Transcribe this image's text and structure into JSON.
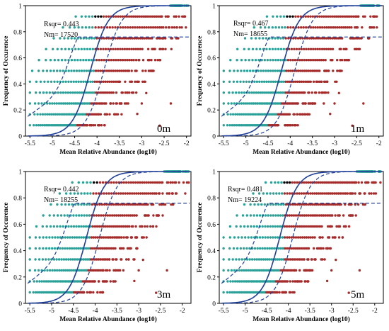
{
  "figure": {
    "panels": [
      {
        "id": "0m",
        "label": "0m",
        "rsqr_text": "Rsqr= 0.443",
        "nm_text": "Nm= 17520"
      },
      {
        "id": "1m",
        "label": "1m",
        "rsqr_text": "Rsqr= 0.467",
        "nm_text": "Nm= 18655"
      },
      {
        "id": "3m",
        "label": "3m",
        "rsqr_text": "Rsqr= 0.442",
        "nm_text": "Nm= 18255"
      },
      {
        "id": "5m",
        "label": "5m",
        "rsqr_text": "Rsqr= 0.481",
        "nm_text": "Nm= 19224"
      }
    ],
    "xlabel": "Mean Relative Abundance (log10)",
    "ylabel": "Frequency of Occurence",
    "colors": {
      "below": "#a52a2a",
      "within": "#000000",
      "above": "#2aa198",
      "fit": "#1f3f99"
    }
  },
  "chart_data": [
    {
      "type": "scatter",
      "panel": "0m",
      "xlim": [
        -5.6,
        -1.9
      ],
      "ylim": [
        0,
        1
      ],
      "xticks": [
        -5.5,
        -5,
        -4.5,
        -4,
        -3.5,
        -3,
        -2.5,
        -2
      ],
      "xtick_labels": [
        "-5.5",
        "-5",
        "-4.5",
        "-4",
        "-3.5",
        "-3",
        "-2.5",
        "-2"
      ],
      "yticks": [
        0,
        0.2,
        0.4,
        0.6,
        0.8,
        1
      ],
      "ytick_labels": [
        "0",
        "0.2",
        "0.4",
        "0.6",
        "0.8",
        "1"
      ],
      "rsqr": 0.443,
      "nm": 17520,
      "fit": {
        "type": "neutral-sigmoid",
        "midpoint_x": -4.15,
        "ci_upper_plateau": 0.76
      },
      "xlabel": "Mean Relative Abundance (log10)",
      "ylabel": "Frequency of Occurence"
    },
    {
      "type": "scatter",
      "panel": "1m",
      "xlim": [
        -5.6,
        -1.9
      ],
      "ylim": [
        0,
        1
      ],
      "xticks": [
        -5.5,
        -5,
        -4.5,
        -4,
        -3.5,
        -3,
        -2.5,
        -2
      ],
      "xtick_labels": [
        "-5.5",
        "-5",
        "-4.5",
        "-4",
        "-3.5",
        "-3",
        "-2.5",
        "-2"
      ],
      "yticks": [
        0,
        0.2,
        0.4,
        0.6,
        0.8,
        1
      ],
      "ytick_labels": [
        "0",
        "0.2",
        "0.4",
        "0.6",
        "0.8",
        "1"
      ],
      "rsqr": 0.467,
      "nm": 18655,
      "fit": {
        "type": "neutral-sigmoid",
        "midpoint_x": -4.2,
        "ci_upper_plateau": 0.76
      },
      "xlabel": "Mean Relative Abundance (log10)",
      "ylabel": "Frequency of Occurence"
    },
    {
      "type": "scatter",
      "panel": "3m",
      "xlim": [
        -5.6,
        -1.8
      ],
      "ylim": [
        0,
        1
      ],
      "xticks": [
        -5.5,
        -5,
        -4.5,
        -4,
        -3.5,
        -3,
        -2.5,
        -2
      ],
      "xtick_labels": [
        "-5.5",
        "-5",
        "-4.5",
        "-4",
        "-3.5",
        "-3",
        "-2.5",
        "-2"
      ],
      "yticks": [
        0,
        0.2,
        0.4,
        0.6,
        0.8,
        1
      ],
      "ytick_labels": [
        "0",
        "0.2",
        "0.4",
        "0.6",
        "0.8",
        "1"
      ],
      "rsqr": 0.442,
      "nm": 18255,
      "fit": {
        "type": "neutral-sigmoid",
        "midpoint_x": -4.2,
        "ci_upper_plateau": 0.76
      },
      "xlabel": "Mean Relative Abundance (log10)",
      "ylabel": "Frequency of Occurence"
    },
    {
      "type": "scatter",
      "panel": "5m",
      "xlim": [
        -5.6,
        -1.8
      ],
      "ylim": [
        0,
        1
      ],
      "xticks": [
        -5.5,
        -5,
        -4.5,
        -4,
        -3.5,
        -3,
        -2.5,
        -2
      ],
      "xtick_labels": [
        "-5.5",
        "-5",
        "-4.5",
        "-4",
        "-3.5",
        "-3",
        "-2.5",
        "-2"
      ],
      "yticks": [
        0,
        0.2,
        0.4,
        0.6,
        0.8,
        1
      ],
      "ytick_labels": [
        "0",
        "0.2",
        "0.4",
        "0.6",
        "0.8",
        "1"
      ],
      "rsqr": 0.481,
      "nm": 19224,
      "fit": {
        "type": "neutral-sigmoid",
        "midpoint_x": -4.2,
        "ci_upper_plateau": 0.76
      },
      "xlabel": "Mean Relative Abundance (log10)",
      "ylabel": "Frequency of Occurence"
    }
  ]
}
